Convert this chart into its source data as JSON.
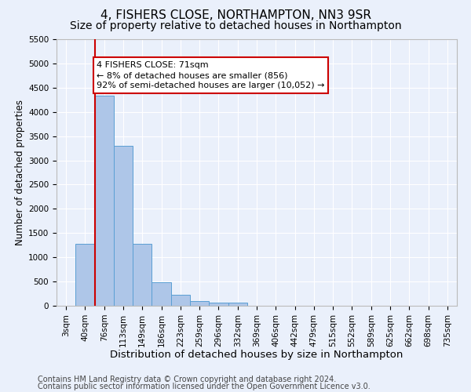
{
  "title1": "4, FISHERS CLOSE, NORTHAMPTON, NN3 9SR",
  "title2": "Size of property relative to detached houses in Northampton",
  "xlabel": "Distribution of detached houses by size in Northampton",
  "ylabel": "Number of detached properties",
  "footer1": "Contains HM Land Registry data © Crown copyright and database right 2024.",
  "footer2": "Contains public sector information licensed under the Open Government Licence v3.0.",
  "categories": [
    "3sqm",
    "40sqm",
    "76sqm",
    "113sqm",
    "149sqm",
    "186sqm",
    "223sqm",
    "259sqm",
    "296sqm",
    "332sqm",
    "369sqm",
    "406sqm",
    "442sqm",
    "479sqm",
    "515sqm",
    "552sqm",
    "589sqm",
    "625sqm",
    "662sqm",
    "698sqm",
    "735sqm"
  ],
  "values": [
    0,
    1270,
    4330,
    3300,
    1280,
    490,
    220,
    90,
    70,
    60,
    0,
    0,
    0,
    0,
    0,
    0,
    0,
    0,
    0,
    0,
    0
  ],
  "bar_color": "#aec6e8",
  "bar_edge_color": "#5a9fd4",
  "red_line_color": "#cc0000",
  "annotation_text": "4 FISHERS CLOSE: 71sqm\n← 8% of detached houses are smaller (856)\n92% of semi-detached houses are larger (10,052) →",
  "annotation_box_color": "#ffffff",
  "annotation_box_edge_color": "#cc0000",
  "ylim": [
    0,
    5500
  ],
  "yticks": [
    0,
    500,
    1000,
    1500,
    2000,
    2500,
    3000,
    3500,
    4000,
    4500,
    5000,
    5500
  ],
  "background_color": "#eaf0fb",
  "grid_color": "#ffffff",
  "title1_fontsize": 11,
  "title2_fontsize": 10,
  "xlabel_fontsize": 9.5,
  "ylabel_fontsize": 8.5,
  "footer_fontsize": 7,
  "tick_fontsize": 7.5,
  "annot_fontsize": 8
}
